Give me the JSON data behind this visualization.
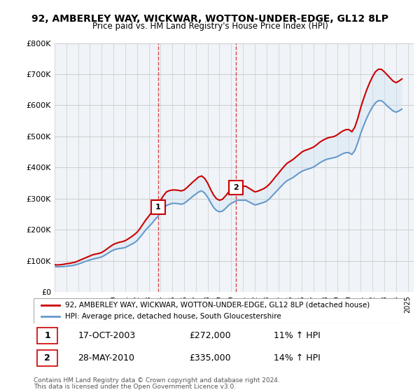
{
  "title": "92, AMBERLEY WAY, WICKWAR, WOTTON-UNDER-EDGE, GL12 8LP",
  "subtitle": "Price paid vs. HM Land Registry's House Price Index (HPI)",
  "ylabel": "",
  "xlabel": "",
  "ylim": [
    0,
    800000
  ],
  "yticks": [
    0,
    100000,
    200000,
    300000,
    400000,
    500000,
    600000,
    700000,
    800000
  ],
  "ytick_labels": [
    "£0",
    "£100K",
    "£200K",
    "£300K",
    "£400K",
    "£500K",
    "£600K",
    "£700K",
    "£800K"
  ],
  "transaction1": {
    "date_num": 2003.79,
    "price": 272000,
    "label": "1",
    "date_str": "17-OCT-2003",
    "hpi_pct": "11% ↑ HPI"
  },
  "transaction2": {
    "date_num": 2010.4,
    "price": 335000,
    "label": "2",
    "date_str": "28-MAY-2010",
    "hpi_pct": "14% ↑ HPI"
  },
  "line1_color": "#cc0000",
  "line2_color": "#6699cc",
  "fill_color": "#cce0f0",
  "grid_color": "#cccccc",
  "background_color": "#f0f4f8",
  "legend1": "92, AMBERLEY WAY, WICKWAR, WOTTON-UNDER-EDGE, GL12 8LP (detached house)",
  "legend2": "HPI: Average price, detached house, South Gloucestershire",
  "footer1": "Contains HM Land Registry data © Crown copyright and database right 2024.",
  "footer2": "This data is licensed under the Open Government Licence v3.0.",
  "hpi_data": {
    "years": [
      1995.0,
      1995.25,
      1995.5,
      1995.75,
      1996.0,
      1996.25,
      1996.5,
      1996.75,
      1997.0,
      1997.25,
      1997.5,
      1997.75,
      1998.0,
      1998.25,
      1998.5,
      1998.75,
      1999.0,
      1999.25,
      1999.5,
      1999.75,
      2000.0,
      2000.25,
      2000.5,
      2000.75,
      2001.0,
      2001.25,
      2001.5,
      2001.75,
      2002.0,
      2002.25,
      2002.5,
      2002.75,
      2003.0,
      2003.25,
      2003.5,
      2003.75,
      2004.0,
      2004.25,
      2004.5,
      2004.75,
      2005.0,
      2005.25,
      2005.5,
      2005.75,
      2006.0,
      2006.25,
      2006.5,
      2006.75,
      2007.0,
      2007.25,
      2007.5,
      2007.75,
      2008.0,
      2008.25,
      2008.5,
      2008.75,
      2009.0,
      2009.25,
      2009.5,
      2009.75,
      2010.0,
      2010.25,
      2010.5,
      2010.75,
      2011.0,
      2011.25,
      2011.5,
      2011.75,
      2012.0,
      2012.25,
      2012.5,
      2012.75,
      2013.0,
      2013.25,
      2013.5,
      2013.75,
      2014.0,
      2014.25,
      2014.5,
      2014.75,
      2015.0,
      2015.25,
      2015.5,
      2015.75,
      2016.0,
      2016.25,
      2016.5,
      2016.75,
      2017.0,
      2017.25,
      2017.5,
      2017.75,
      2018.0,
      2018.25,
      2018.5,
      2018.75,
      2019.0,
      2019.25,
      2019.5,
      2019.75,
      2020.0,
      2020.25,
      2020.5,
      2020.75,
      2021.0,
      2021.25,
      2021.5,
      2021.75,
      2022.0,
      2022.25,
      2022.5,
      2022.75,
      2023.0,
      2023.25,
      2023.5,
      2023.75,
      2024.0,
      2024.25,
      2024.5
    ],
    "values": [
      82000,
      81000,
      81500,
      82000,
      83000,
      84000,
      85000,
      87000,
      90000,
      93000,
      97000,
      100000,
      103000,
      106000,
      108000,
      110000,
      113000,
      118000,
      124000,
      130000,
      135000,
      138000,
      140000,
      141000,
      143000,
      148000,
      153000,
      158000,
      165000,
      176000,
      188000,
      200000,
      210000,
      220000,
      232000,
      242000,
      255000,
      268000,
      278000,
      282000,
      285000,
      285000,
      284000,
      282000,
      285000,
      292000,
      300000,
      308000,
      315000,
      322000,
      325000,
      318000,
      305000,
      288000,
      272000,
      262000,
      258000,
      260000,
      268000,
      278000,
      285000,
      290000,
      295000,
      295000,
      295000,
      295000,
      290000,
      285000,
      280000,
      282000,
      285000,
      288000,
      292000,
      300000,
      310000,
      320000,
      330000,
      340000,
      350000,
      358000,
      363000,
      368000,
      375000,
      382000,
      388000,
      392000,
      395000,
      398000,
      402000,
      408000,
      415000,
      420000,
      425000,
      428000,
      430000,
      432000,
      435000,
      440000,
      445000,
      448000,
      448000,
      442000,
      455000,
      480000,
      510000,
      535000,
      558000,
      578000,
      595000,
      608000,
      615000,
      615000,
      608000,
      598000,
      590000,
      582000,
      578000,
      582000,
      588000
    ]
  },
  "price_data": {
    "years": [
      1995.0,
      1995.25,
      1995.5,
      1995.75,
      1996.0,
      1996.25,
      1996.5,
      1996.75,
      1997.0,
      1997.25,
      1997.5,
      1997.75,
      1998.0,
      1998.25,
      1998.5,
      1998.75,
      1999.0,
      1999.25,
      1999.5,
      1999.75,
      2000.0,
      2000.25,
      2000.5,
      2000.75,
      2001.0,
      2001.25,
      2001.5,
      2001.75,
      2002.0,
      2002.25,
      2002.5,
      2002.75,
      2003.0,
      2003.25,
      2003.5,
      2003.75,
      2003.79,
      2004.0,
      2004.25,
      2004.5,
      2004.75,
      2005.0,
      2005.25,
      2005.5,
      2005.75,
      2006.0,
      2006.25,
      2006.5,
      2006.75,
      2007.0,
      2007.25,
      2007.5,
      2007.75,
      2008.0,
      2008.25,
      2008.5,
      2008.75,
      2009.0,
      2009.25,
      2009.5,
      2009.75,
      2010.0,
      2010.25,
      2010.4,
      2010.5,
      2010.75,
      2011.0,
      2011.25,
      2011.5,
      2011.75,
      2012.0,
      2012.25,
      2012.5,
      2012.75,
      2013.0,
      2013.25,
      2013.5,
      2013.75,
      2014.0,
      2014.25,
      2014.5,
      2014.75,
      2015.0,
      2015.25,
      2015.5,
      2015.75,
      2016.0,
      2016.25,
      2016.5,
      2016.75,
      2017.0,
      2017.25,
      2017.5,
      2017.75,
      2018.0,
      2018.25,
      2018.5,
      2018.75,
      2019.0,
      2019.25,
      2019.5,
      2019.75,
      2020.0,
      2020.25,
      2020.5,
      2020.75,
      2021.0,
      2021.25,
      2021.5,
      2021.75,
      2022.0,
      2022.25,
      2022.5,
      2022.75,
      2023.0,
      2023.25,
      2023.5,
      2023.75,
      2024.0,
      2024.25,
      2024.5
    ],
    "values": [
      88000,
      87000,
      88000,
      89000,
      91000,
      92000,
      94000,
      96000,
      100000,
      104000,
      108000,
      112000,
      116000,
      120000,
      122000,
      124000,
      127000,
      133000,
      140000,
      147000,
      153000,
      157000,
      160000,
      162000,
      165000,
      171000,
      177000,
      184000,
      192000,
      204000,
      218000,
      232000,
      244000,
      256000,
      268000,
      272000,
      272000,
      295000,
      310000,
      322000,
      326000,
      328000,
      328000,
      327000,
      325000,
      328000,
      336000,
      345000,
      354000,
      362000,
      370000,
      373000,
      365000,
      350000,
      330000,
      312000,
      300000,
      295000,
      298000,
      308000,
      320000,
      328000,
      334000,
      335000,
      340000,
      340000,
      340000,
      340000,
      334000,
      328000,
      322000,
      324000,
      328000,
      332000,
      338000,
      347000,
      358000,
      370000,
      381000,
      393000,
      404000,
      414000,
      420000,
      426000,
      434000,
      442000,
      450000,
      455000,
      458000,
      462000,
      466000,
      473000,
      481000,
      487000,
      492000,
      496000,
      498000,
      500000,
      505000,
      512000,
      518000,
      522000,
      522000,
      515000,
      530000,
      558000,
      593000,
      622000,
      649000,
      672000,
      692000,
      708000,
      716000,
      716000,
      708000,
      698000,
      688000,
      678000,
      673000,
      678000,
      685000
    ]
  }
}
